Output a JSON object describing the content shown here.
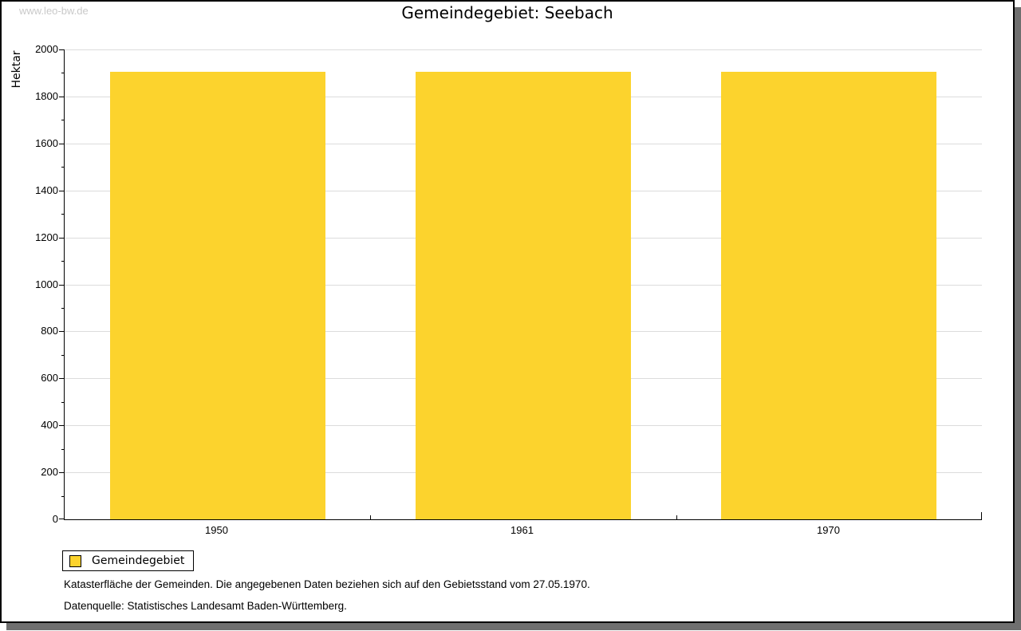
{
  "watermark": "www.leo-bw.de",
  "title": "Gemeindegebiet: Seebach",
  "legend": {
    "label": "Gemeindegebiet"
  },
  "footer": {
    "line1": "Katasterfläche der Gemeinden. Die angegebenen Daten beziehen sich auf den Gebietsstand vom 27.05.1970.",
    "line2": "Datenquelle: Statistisches Landesamt Baden-Württemberg."
  },
  "chart_data": {
    "type": "bar",
    "title": "Gemeindegebiet: Seebach",
    "categories": [
      "1950",
      "1961",
      "1970"
    ],
    "series": [
      {
        "name": "Gemeindegebiet",
        "values": [
          1905,
          1905,
          1905
        ],
        "color": "#fcd32d"
      }
    ],
    "xlabel": "",
    "ylabel": "Hektar",
    "ylim": [
      0,
      2000
    ],
    "ytick_step": 200,
    "minor_tick_step": 100,
    "grid": true,
    "legend_position": "bottom-left",
    "colors": {
      "bar": "#fcd32d",
      "grid": "#dcdcdc",
      "axis": "#000000",
      "watermark": "#c9c9c9",
      "shadow": "#6f6f6f"
    }
  }
}
